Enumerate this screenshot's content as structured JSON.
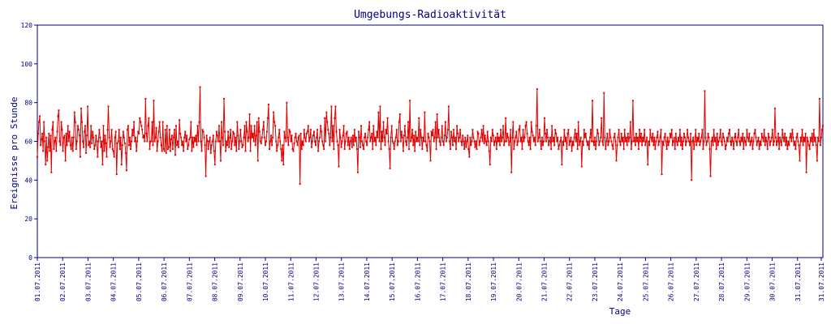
{
  "chart_data": {
    "type": "line",
    "title": "Umgebungs-Radioaktivität",
    "xlabel": "Tage",
    "ylabel": "Ereignisse pro Stunde",
    "ylim": [
      0,
      120
    ],
    "yticks": [
      0,
      20,
      40,
      60,
      80,
      100,
      120
    ],
    "xticks": [
      "01.07.2011",
      "02.07.2011",
      "03.07.2011",
      "04.07.2011",
      "05.07.2011",
      "06.07.2011",
      "07.07.2011",
      "08.07.2011",
      "09.07.2011",
      "10.07.2011",
      "11.07.2011",
      "12.07.2011",
      "13.07.2011",
      "14.07.2011",
      "15.07.2011",
      "16.07.2011",
      "17.07.2011",
      "18.07.2011",
      "19.07.2011",
      "20.07.2011",
      "21.07.2011",
      "22.07.2011",
      "23.07.2011",
      "24.07.2011",
      "25.07.2011",
      "26.07.2011",
      "27.07.2011",
      "28.07.2011",
      "29.07.2011",
      "30.07.2011",
      "31.07.2011",
      "31.07.2011"
    ],
    "grid": false,
    "line_color": "#e00000",
    "axis_color": "#000080",
    "series": [
      {
        "values": [
          52,
          64,
          70,
          73,
          58,
          61,
          64,
          55,
          70,
          60,
          48,
          62,
          50,
          57,
          64,
          55,
          63,
          44,
          66,
          70,
          56,
          60,
          62,
          55,
          65,
          73,
          76,
          60,
          58,
          70,
          66,
          55,
          62,
          63,
          50,
          64,
          58,
          68,
          60,
          65,
          58,
          56,
          62,
          55,
          62,
          75,
          70,
          56,
          60,
          68,
          66,
          63,
          52,
          77,
          70,
          60,
          57,
          65,
          68,
          54,
          63,
          78,
          58,
          60,
          57,
          68,
          59,
          65,
          62,
          56,
          58,
          63,
          60,
          52,
          60,
          66,
          62,
          57,
          60,
          48,
          68,
          55,
          63,
          59,
          52,
          66,
          78,
          62,
          57,
          60,
          66,
          56,
          55,
          52,
          62,
          65,
          43,
          59,
          60,
          66,
          56,
          62,
          48,
          58,
          65,
          62,
          59,
          54,
          45,
          66,
          68,
          58,
          62,
          56,
          60,
          66,
          63,
          70,
          60,
          62,
          55,
          60,
          65,
          64,
          72,
          70,
          68,
          66,
          62,
          63,
          60,
          82,
          64,
          60,
          68,
          72,
          56,
          60,
          60,
          70,
          58,
          81,
          60,
          62,
          67,
          55,
          60,
          65,
          70,
          62,
          58,
          55,
          70,
          56,
          55,
          66,
          54,
          68,
          56,
          57,
          66,
          55,
          61,
          63,
          56,
          62,
          66,
          53,
          68,
          58,
          60,
          57,
          71,
          64,
          62,
          58,
          60,
          55,
          62,
          65,
          60,
          63,
          56,
          58,
          61,
          62,
          70,
          55,
          62,
          57,
          62,
          60,
          63,
          58,
          68,
          60,
          70,
          88,
          60,
          55,
          66,
          65,
          62,
          58,
          42,
          63,
          60,
          56,
          60,
          62,
          54,
          58,
          60,
          63,
          55,
          48,
          60,
          65,
          63,
          60,
          68,
          60,
          50,
          70,
          62,
          58,
          82,
          65,
          55,
          60,
          58,
          65,
          57,
          62,
          66,
          56,
          60,
          65,
          64,
          58,
          62,
          55,
          70,
          63,
          56,
          60,
          66,
          60,
          57,
          58,
          62,
          68,
          55,
          70,
          65,
          60,
          62,
          74,
          55,
          68,
          62,
          64,
          60,
          68,
          58,
          63,
          70,
          50,
          72,
          65,
          60,
          59,
          62,
          66,
          70,
          62,
          58,
          60,
          65,
          72,
          79,
          56,
          60,
          63,
          58,
          62,
          75,
          70,
          68,
          60,
          55,
          58,
          62,
          66,
          60,
          56,
          50,
          58,
          48,
          65,
          62,
          60,
          80,
          62,
          58,
          66,
          65,
          60,
          63,
          56,
          55,
          59,
          62,
          64,
          60,
          58,
          62,
          63,
          38,
          64,
          56,
          60,
          58,
          66,
          62,
          60,
          64,
          65,
          68,
          60,
          62,
          66,
          57,
          60,
          63,
          65,
          60,
          58,
          62,
          66,
          55,
          60,
          62,
          68,
          65,
          60,
          58,
          56,
          72,
          60,
          75,
          70,
          66,
          64,
          58,
          62,
          78,
          60,
          68,
          56,
          72,
          78,
          65,
          60,
          58,
          47,
          66,
          62,
          57,
          60,
          63,
          68,
          56,
          60,
          64,
          65,
          58,
          62,
          56,
          60,
          62,
          57,
          63,
          58,
          66,
          60,
          62,
          56,
          44,
          65,
          62,
          57,
          68,
          60,
          58,
          56,
          62,
          64,
          60,
          58,
          62,
          66,
          70,
          60,
          62,
          64,
          56,
          68,
          60,
          62,
          58,
          65,
          62,
          75,
          60,
          78,
          56,
          65,
          60,
          70,
          62,
          58,
          66,
          64,
          72,
          60,
          56,
          46,
          62,
          68,
          60,
          59,
          56,
          60,
          62,
          66,
          58,
          60,
          70,
          74,
          60,
          65,
          62,
          55,
          63,
          68,
          60,
          58,
          62,
          70,
          56,
          81,
          60,
          62,
          66,
          58,
          63,
          55,
          65,
          60,
          62,
          60,
          72,
          58,
          66,
          62,
          56,
          62,
          60,
          75,
          60,
          58,
          55,
          64,
          62,
          60,
          50,
          65,
          63,
          66,
          60,
          62,
          70,
          56,
          74,
          62,
          66,
          60,
          58,
          62,
          68,
          60,
          58,
          63,
          70,
          60,
          62,
          66,
          78,
          60,
          56,
          65,
          62,
          58,
          66,
          60,
          62,
          56,
          68,
          64,
          60,
          62,
          66,
          60,
          58,
          63,
          60,
          56,
          62,
          57,
          60,
          63,
          56,
          52,
          62,
          58,
          60,
          66,
          62,
          60,
          57,
          60,
          56,
          65,
          64,
          58,
          60,
          62,
          66,
          60,
          68,
          59,
          63,
          60,
          58,
          65,
          60,
          55,
          48,
          62,
          60,
          66,
          63,
          58,
          60,
          62,
          56,
          64,
          60,
          62,
          58,
          66,
          60,
          62,
          68,
          58,
          60,
          72,
          60,
          64,
          62,
          58,
          60,
          66,
          44,
          62,
          70,
          56,
          60,
          62,
          65,
          58,
          60,
          66,
          68,
          60,
          62,
          56,
          66,
          60,
          62,
          68,
          70,
          64,
          60,
          58,
          62,
          56,
          70,
          65,
          63,
          60,
          62,
          58,
          68,
          87,
          60,
          62,
          66,
          60,
          56,
          62,
          58,
          60,
          72,
          64,
          60,
          66,
          62,
          58,
          60,
          62,
          56,
          68,
          60,
          62,
          58,
          66,
          64,
          60,
          62,
          56,
          58,
          60,
          62,
          48,
          60,
          58,
          66,
          60,
          62,
          56,
          64,
          66,
          58,
          60,
          62,
          55,
          60,
          58,
          62,
          66,
          60,
          64,
          56,
          70,
          58,
          60,
          62,
          47,
          60,
          58,
          66,
          62,
          64,
          60,
          58,
          60,
          56,
          62,
          66,
          60,
          81,
          60,
          58,
          62,
          56,
          60,
          66,
          64,
          58,
          60,
          62,
          72,
          60,
          58,
          85,
          62,
          56,
          60,
          64,
          58,
          60,
          66,
          62,
          60,
          58,
          56,
          62,
          64,
          60,
          50,
          58,
          62,
          66,
          60,
          58,
          64,
          60,
          62,
          56,
          66,
          60,
          62,
          58,
          64,
          60,
          62,
          70,
          56,
          60,
          81,
          60,
          62,
          58,
          64,
          60,
          62,
          56,
          66,
          60,
          64,
          58,
          62,
          60,
          66,
          58,
          60,
          62,
          48,
          60,
          58,
          66,
          62,
          60,
          64,
          58,
          62,
          56,
          60,
          62,
          65,
          58,
          60,
          62,
          66,
          43,
          60,
          58,
          62,
          64,
          60,
          56,
          62,
          58,
          60,
          64,
          62,
          66,
          58,
          60,
          62,
          56,
          64,
          60,
          58,
          62,
          60,
          66,
          58,
          62,
          56,
          60,
          64,
          62,
          58,
          60,
          66,
          62,
          60,
          58,
          64,
          40,
          60,
          62,
          56,
          60,
          66,
          58,
          62,
          60,
          64,
          58,
          60,
          62,
          66,
          56,
          60,
          86,
          62,
          58,
          60,
          64,
          62,
          56,
          42,
          60,
          62,
          58,
          66,
          60,
          62,
          56,
          64,
          58,
          60,
          62,
          66,
          60,
          58,
          64,
          62,
          60,
          56,
          58,
          62,
          60,
          64,
          66,
          60,
          58,
          62,
          60,
          56,
          62,
          64,
          60,
          58,
          62,
          66,
          60,
          58,
          62,
          60,
          64,
          56,
          62,
          60,
          58,
          66,
          62,
          60,
          64,
          58,
          60,
          62,
          56,
          60,
          64,
          66,
          62,
          58,
          60,
          62,
          56,
          60,
          58,
          64,
          62,
          60,
          66,
          58,
          62,
          60,
          56,
          64,
          62,
          58,
          60,
          62,
          66,
          58,
          60,
          77,
          62,
          58,
          60,
          64,
          56,
          62,
          60,
          58,
          66,
          62,
          60,
          64,
          58,
          62,
          56,
          60,
          58,
          62,
          64,
          60,
          66,
          62,
          58,
          60,
          56,
          62,
          64,
          60,
          58,
          50,
          62,
          60,
          66,
          58,
          62,
          60,
          64,
          44,
          62,
          60,
          58,
          56,
          62,
          60,
          64,
          58,
          66,
          60,
          62,
          58,
          50,
          62,
          60,
          82,
          58,
          62,
          66,
          68
        ]
      }
    ]
  }
}
